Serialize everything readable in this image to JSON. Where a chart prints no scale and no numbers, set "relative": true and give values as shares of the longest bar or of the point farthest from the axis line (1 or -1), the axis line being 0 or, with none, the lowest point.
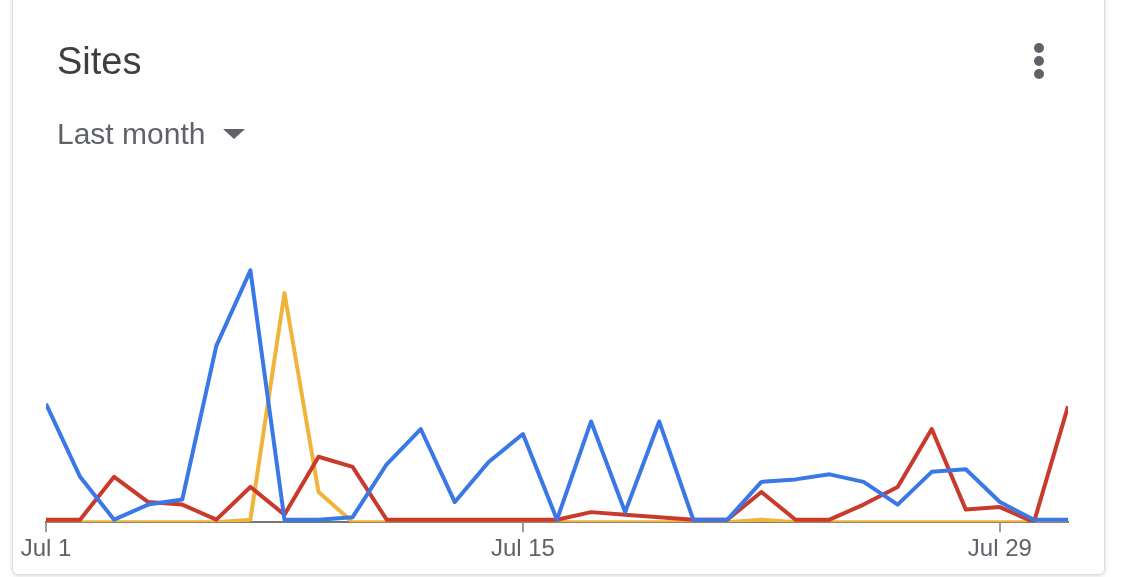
{
  "chart_data": {
    "type": "line",
    "title": "Sites",
    "subtitle": "Last month",
    "relative": true,
    "marker": "none",
    "line_style": "solid",
    "x": [
      "--07-01",
      "--07-02",
      "--07-03",
      "--07-04",
      "--07-05",
      "--07-06",
      "--07-07",
      "--07-08",
      "--07-09",
      "--07-10",
      "--07-11",
      "--07-12",
      "--07-13",
      "--07-14",
      "--07-15",
      "--07-16",
      "--07-17",
      "--07-18",
      "--07-19",
      "--07-20",
      "--07-21",
      "--07-22",
      "--07-23",
      "--07-24",
      "--07-25",
      "--07-26",
      "--07-27",
      "--07-28",
      "--07-29",
      "--07-30",
      "--07-31"
    ],
    "xlim": [
      "--07-01",
      "--07-31"
    ],
    "xticks": [
      {
        "value": "--07-01",
        "label": "Jul 1"
      },
      {
        "value": "--07-15",
        "label": "Jul 15"
      },
      {
        "value": "--07-29",
        "label": "Jul 29"
      }
    ],
    "series": [
      {
        "color": "#3b78e7",
        "values": [
          0.47,
          0.18,
          0.01,
          0.07,
          0.09,
          0.7,
          1,
          0.01,
          0.01,
          0.02,
          0.23,
          0.37,
          0.08,
          0.24,
          0.35,
          0.01,
          0.4,
          0.04,
          0.4,
          0.01,
          0.01,
          0.16,
          0.17,
          0.19,
          0.16,
          0.07,
          0.2,
          0.21,
          0.08,
          0.01,
          0.01
        ]
      },
      {
        "color": "#c9392c",
        "values": [
          0.01,
          0.01,
          0.18,
          0.08,
          0.07,
          0.01,
          0.14,
          0.03,
          0.26,
          0.22,
          0.01,
          0.01,
          0.01,
          0.01,
          0.01,
          0.01,
          0.04,
          0.03,
          0.02,
          0.01,
          0.01,
          0.12,
          0.01,
          0.01,
          0.07,
          0.14,
          0.37,
          0.05,
          0.06,
          0,
          0.46
        ]
      },
      {
        "color": "#f0b43a",
        "values": [
          0,
          0,
          0,
          0,
          0,
          0,
          0.01,
          0.91,
          0.12,
          0,
          0,
          0,
          0,
          0,
          0,
          0,
          0,
          0,
          0,
          0,
          0,
          0.01,
          0,
          0,
          0,
          0,
          0,
          0,
          0,
          0,
          0
        ]
      }
    ]
  }
}
